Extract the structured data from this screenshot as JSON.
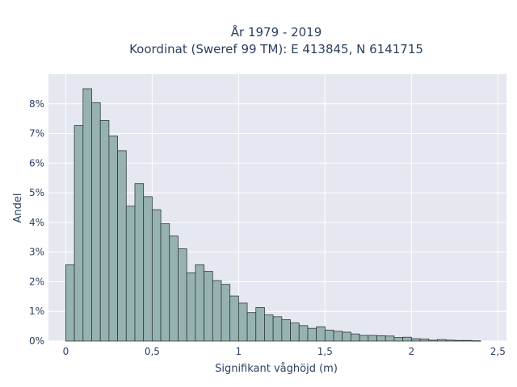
{
  "chart_data": {
    "type": "bar",
    "title_lines": [
      "År 1979 - 2019",
      "Koordinat (Sweref 99 TM): E 413845, N 6141715"
    ],
    "xlabel": "Signifikant våghöjd (m)",
    "ylabel": "Andel",
    "xlim": [
      -0.1,
      2.55
    ],
    "ylim": [
      0,
      0.09
    ],
    "x_ticks": [
      0,
      0.5,
      1,
      1.5,
      2,
      2.5
    ],
    "x_tick_labels": [
      "0",
      "0,5",
      "1",
      "1,5",
      "2",
      "2,5"
    ],
    "y_ticks": [
      0,
      0.01,
      0.02,
      0.03,
      0.04,
      0.05,
      0.06,
      0.07,
      0.08
    ],
    "y_tick_labels": [
      "0%",
      "1%",
      "2%",
      "3%",
      "4%",
      "5%",
      "6%",
      "7%",
      "8%"
    ],
    "bin_width": 0.05,
    "bin_start": 0.0,
    "values": [
      0.0257,
      0.0727,
      0.0851,
      0.0804,
      0.0744,
      0.0691,
      0.0642,
      0.0455,
      0.0531,
      0.0487,
      0.0443,
      0.0396,
      0.0354,
      0.0311,
      0.023,
      0.0257,
      0.0235,
      0.0204,
      0.0191,
      0.0152,
      0.0128,
      0.0096,
      0.0113,
      0.0088,
      0.0082,
      0.0072,
      0.0061,
      0.0052,
      0.0043,
      0.0048,
      0.0037,
      0.0033,
      0.003,
      0.0024,
      0.0019,
      0.0019,
      0.0018,
      0.0017,
      0.0012,
      0.0013,
      0.0008,
      0.0007,
      0.0003,
      0.0005,
      0.0003,
      0.0002,
      0.0002,
      0.0001
    ],
    "colors": {
      "bar": "#97b3b1",
      "bar_edge": "#2f3a3a",
      "plot_bg": "#e5e8f0",
      "grid": "#ffffff",
      "text": "#2a3f5f"
    },
    "grid": true
  }
}
